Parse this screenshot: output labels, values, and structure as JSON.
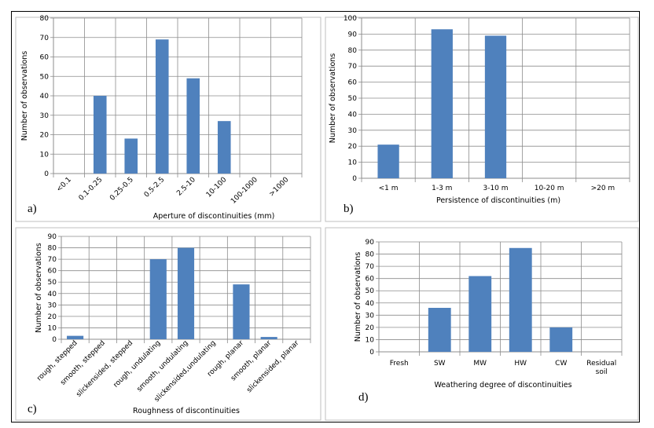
{
  "chart_data": [
    {
      "id": "a",
      "type": "bar",
      "panel_label": "a)",
      "categories": [
        "<0.1",
        "0.1-0.25",
        "0.25-0.5",
        "0.5-2.5",
        "2.5-10",
        "10-100",
        "100-1000",
        ">1000"
      ],
      "values": [
        0,
        40,
        18,
        69,
        49,
        27,
        0,
        0
      ],
      "xlabel": "Aperture of discontinuities (mm)",
      "ylabel": "Number of observations",
      "ylim": [
        0,
        80
      ],
      "yticks": [
        0,
        10,
        20,
        30,
        40,
        50,
        60,
        70,
        80
      ],
      "grid": true,
      "bar_color": "#4f81bd"
    },
    {
      "id": "b",
      "type": "bar",
      "panel_label": "b)",
      "categories": [
        "<1 m",
        "1-3 m",
        "3-10 m",
        "10-20 m",
        ">20 m"
      ],
      "values": [
        21,
        93,
        89,
        0,
        0
      ],
      "xlabel": "Persistence of discontinuities (m)",
      "ylabel": "Number of observations",
      "ylim": [
        0,
        100
      ],
      "yticks": [
        0,
        10,
        20,
        30,
        40,
        50,
        60,
        70,
        80,
        90,
        100
      ],
      "grid": true,
      "bar_color": "#4f81bd"
    },
    {
      "id": "c",
      "type": "bar",
      "panel_label": "c)",
      "categories": [
        "rough, stepped",
        "smooth, stepped",
        "slickensided, stepped",
        "rough, undulating",
        "smooth, undulating",
        "slickensided,undulating",
        "rough, planar",
        "smooth, planar",
        "slickensided, planar"
      ],
      "values": [
        3,
        0,
        0,
        70,
        80,
        0,
        48,
        2,
        0
      ],
      "xlabel": "Roughness of discontinuities",
      "ylabel": "Number of observations",
      "ylim": [
        0,
        90
      ],
      "yticks": [
        0,
        10,
        20,
        30,
        40,
        50,
        60,
        70,
        80,
        90
      ],
      "grid": true,
      "bar_color": "#4f81bd"
    },
    {
      "id": "d",
      "type": "bar",
      "panel_label": "d)",
      "categories": [
        "Fresh",
        "SW",
        "MW",
        "HW",
        "CW",
        "Residual\nsoil"
      ],
      "values": [
        0,
        36,
        62,
        85,
        20,
        0
      ],
      "xlabel": "Weathering degree of discontinuities",
      "ylabel": "Number of observations",
      "ylim": [
        0,
        90
      ],
      "yticks": [
        0,
        10,
        20,
        30,
        40,
        50,
        60,
        70,
        80,
        90
      ],
      "grid": true,
      "bar_color": "#4f81bd"
    }
  ]
}
